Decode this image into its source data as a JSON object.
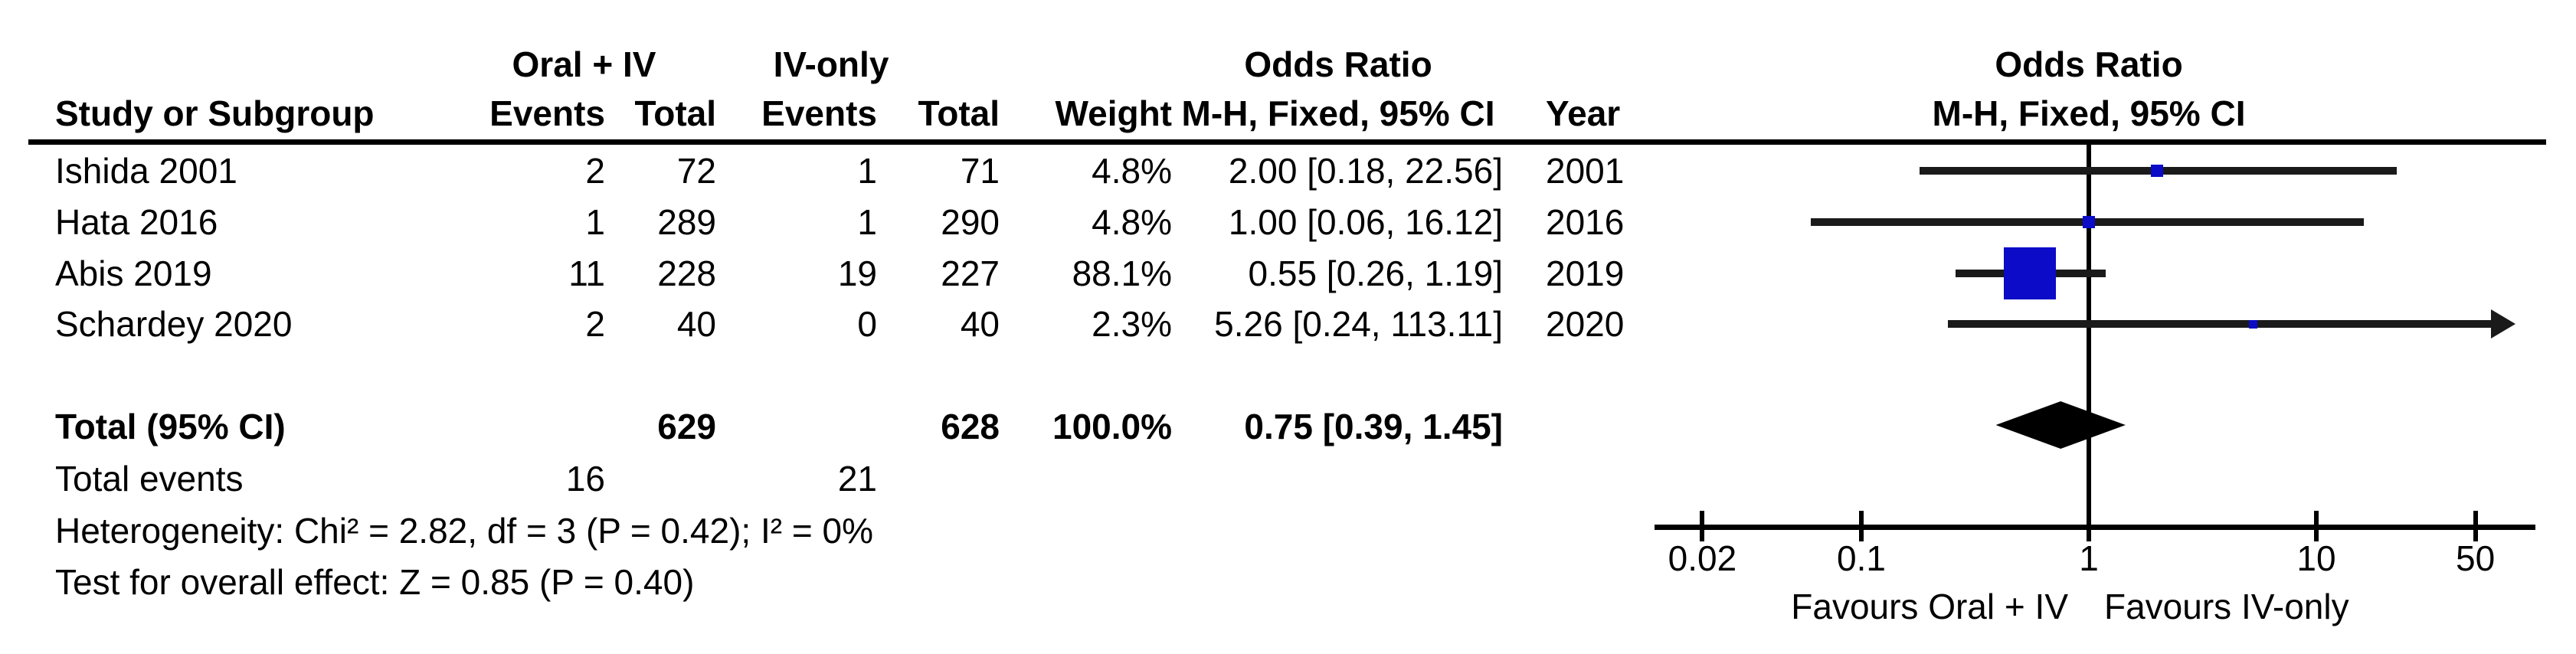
{
  "chart_data": {
    "type": "forest_plot",
    "title_left_col1": "Oral + IV",
    "title_left_col2": "IV-only",
    "effect_header": "Odds Ratio",
    "method_header": "M-H, Fixed, 95% CI",
    "columns": {
      "study": "Study or Subgroup",
      "events1": "Events",
      "total1": "Total",
      "events2": "Events",
      "total2": "Total",
      "weight": "Weight",
      "ci": "M-H, Fixed, 95% CI",
      "year": "Year"
    },
    "plot_header_line1": "Odds Ratio",
    "plot_header_line2": "M-H, Fixed, 95% CI",
    "studies": [
      {
        "name": "Ishida 2001",
        "events1": "2",
        "total1": "72",
        "events2": "1",
        "total2": "71",
        "weight": "4.8%",
        "weight_value": 4.8,
        "or": 2.0,
        "ci_low": 0.18,
        "ci_high": 22.56,
        "ci_text": "2.00 [0.18, 22.56]",
        "year": "2001"
      },
      {
        "name": "Hata 2016",
        "events1": "1",
        "total1": "289",
        "events2": "1",
        "total2": "290",
        "weight": "4.8%",
        "weight_value": 4.8,
        "or": 1.0,
        "ci_low": 0.06,
        "ci_high": 16.12,
        "ci_text": "1.00 [0.06, 16.12]",
        "year": "2016"
      },
      {
        "name": "Abis 2019",
        "events1": "11",
        "total1": "228",
        "events2": "19",
        "total2": "227",
        "weight": "88.1%",
        "weight_value": 88.1,
        "or": 0.55,
        "ci_low": 0.26,
        "ci_high": 1.19,
        "ci_text": "0.55 [0.26, 1.19]",
        "year": "2019"
      },
      {
        "name": "Schardey 2020",
        "events1": "2",
        "total1": "40",
        "events2": "0",
        "total2": "40",
        "weight": "2.3%",
        "weight_value": 2.3,
        "or": 5.26,
        "ci_low": 0.24,
        "ci_high": 113.11,
        "ci_text": "5.26 [0.24, 113.11]",
        "year": "2020"
      }
    ],
    "total": {
      "label": "Total (95% CI)",
      "total1": "629",
      "total2": "628",
      "weight": "100.0%",
      "or": 0.75,
      "ci_low": 0.39,
      "ci_high": 1.45,
      "ci_text": "0.75 [0.39, 1.45]"
    },
    "total_events": {
      "label": "Total events",
      "events1": "16",
      "events2": "21"
    },
    "heterogeneity_text": "Heterogeneity: Chi² = 2.82, df = 3 (P = 0.42); I² = 0%",
    "overall_effect_text": "Test for overall effect: Z = 0.85 (P = 0.40)",
    "axis": {
      "scale": "log",
      "min": 0.02,
      "max": 50,
      "ticks": [
        "0.02",
        "0.1",
        "1",
        "10",
        "50"
      ],
      "tick_values": [
        0.02,
        0.1,
        1,
        10,
        50
      ]
    },
    "footer_left": "Favours Oral + IV",
    "footer_right": "Favours IV-only",
    "colors": {
      "square": "#0b0bc8",
      "diamond": "#000000",
      "ci_line": "#1a1a1a",
      "axis": "#000000"
    }
  }
}
